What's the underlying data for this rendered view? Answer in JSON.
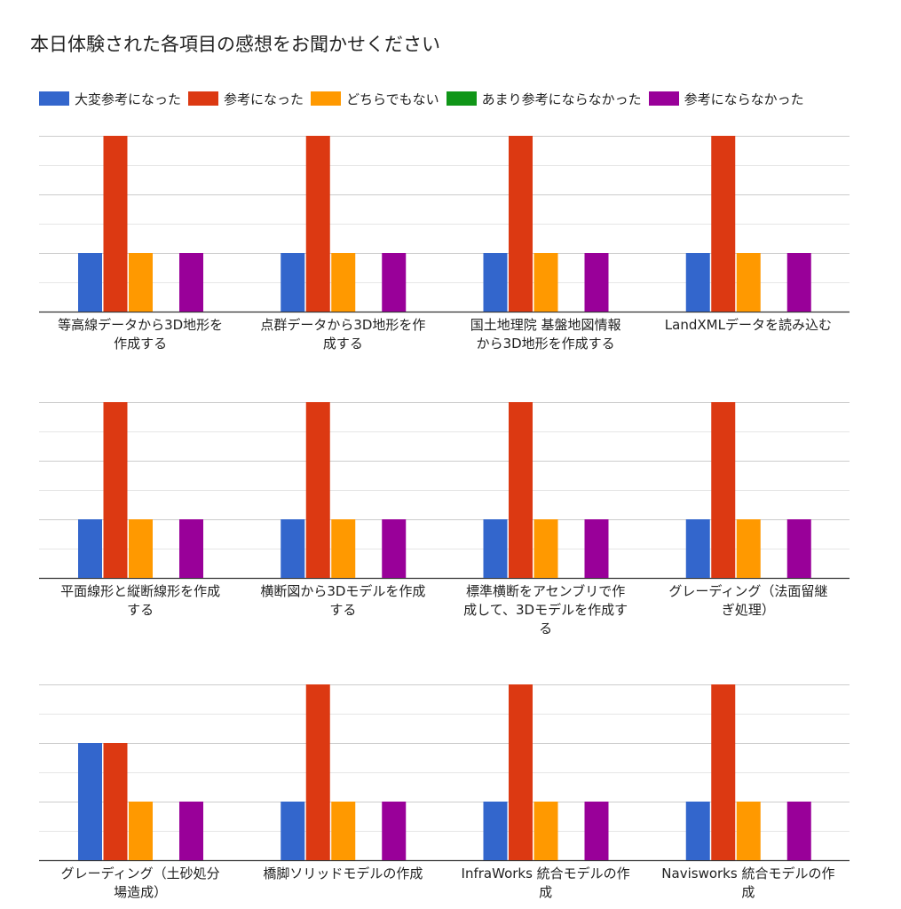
{
  "title": "本日体験された各項目の感想をお聞かせください",
  "colors": [
    "#3366cc",
    "#dc3912",
    "#ff9900",
    "#109618",
    "#990099"
  ],
  "chart_data": {
    "type": "bar",
    "legend_position": "top",
    "grid": true,
    "series": [
      {
        "name": "大変参考になった"
      },
      {
        "name": "参考になった"
      },
      {
        "name": "どちらでもない"
      },
      {
        "name": "あまり参考にならなかった"
      },
      {
        "name": "参考にならなかった"
      }
    ],
    "panels": [
      {
        "ylim": [
          0,
          3
        ],
        "items": [
          {
            "label": "等高線データから3D地形を作成する",
            "lines": [
              "等高線データから3D地形を",
              "作成する"
            ],
            "values": [
              1,
              3,
              1,
              0,
              1
            ]
          },
          {
            "label": "点群データから3D地形を作成する",
            "lines": [
              "点群データから3D地形を作",
              "成する"
            ],
            "values": [
              1,
              3,
              1,
              0,
              1
            ]
          },
          {
            "label": "国土地理院 基盤地図情報から3D地形を作成する",
            "lines": [
              "国土地理院 基盤地図情報",
              "から3D地形を作成する"
            ],
            "values": [
              1,
              3,
              1,
              0,
              1
            ]
          },
          {
            "label": "LandXMLデータを読み込む",
            "lines": [
              "LandXMLデータを読み込む"
            ],
            "values": [
              1,
              3,
              1,
              0,
              1
            ]
          }
        ]
      },
      {
        "ylim": [
          0,
          3
        ],
        "items": [
          {
            "label": "平面線形と縦断線形を作成する",
            "lines": [
              "平面線形と縦断線形を作成",
              "する"
            ],
            "values": [
              1,
              3,
              1,
              0,
              1
            ]
          },
          {
            "label": "横断図から3Dモデルを作成する",
            "lines": [
              "横断図から3Dモデルを作成",
              "する"
            ],
            "values": [
              1,
              3,
              1,
              0,
              1
            ]
          },
          {
            "label": "標準横断をアセンブリで作成して、3Dモデルを作成する",
            "lines": [
              "標準横断をアセンブリで作",
              "成して、3Dモデルを作成す",
              "る"
            ],
            "values": [
              1,
              3,
              1,
              0,
              1
            ]
          },
          {
            "label": "グレーディング（法面留継ぎ処理）",
            "lines": [
              "グレーディング（法面留継",
              "ぎ処理）"
            ],
            "values": [
              1,
              3,
              1,
              0,
              1
            ]
          }
        ]
      },
      {
        "ylim": [
          0,
          3
        ],
        "items": [
          {
            "label": "グレーディング（土砂処分場造成）",
            "lines": [
              "グレーディング（土砂処分",
              "場造成）"
            ],
            "values": [
              2,
              2,
              1,
              0,
              1
            ]
          },
          {
            "label": "橋脚ソリッドモデルの作成",
            "lines": [
              "橋脚ソリッドモデルの作成"
            ],
            "values": [
              1,
              3,
              1,
              0,
              1
            ]
          },
          {
            "label": "InfraWorks 統合モデルの作成",
            "lines": [
              "InfraWorks 統合モデルの作",
              "成"
            ],
            "values": [
              1,
              3,
              1,
              0,
              1
            ]
          },
          {
            "label": "Navisworks 統合モデルの作成",
            "lines": [
              "Navisworks 統合モデルの作",
              "成"
            ],
            "values": [
              1,
              3,
              1,
              0,
              1
            ]
          }
        ]
      }
    ]
  }
}
